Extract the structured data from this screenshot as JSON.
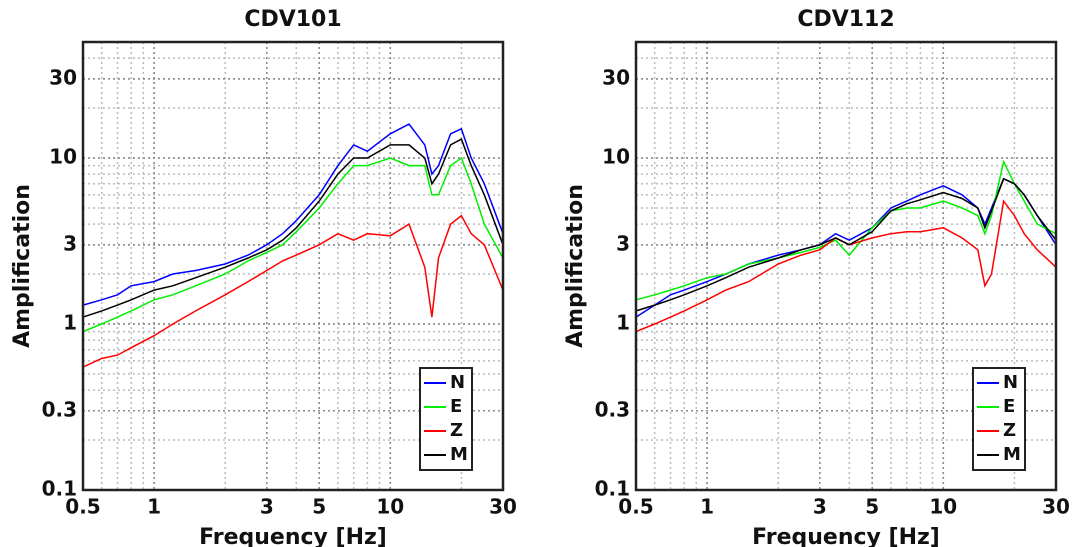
{
  "chart_data": [
    {
      "type": "line",
      "title": "CDV101",
      "x_label": "Frequency [Hz]",
      "y_label": "Amplification",
      "xscale": "log",
      "yscale": "log",
      "grid": true,
      "legend": "lower right",
      "xlim": [
        0.5,
        30
      ],
      "ylim": [
        0.1,
        50
      ],
      "xticks": [
        0.5,
        1,
        3,
        5,
        10,
        30
      ],
      "yticks": [
        0.1,
        0.3,
        1,
        3,
        10,
        30
      ],
      "x": [
        0.5,
        0.6,
        0.7,
        0.8,
        1,
        1.2,
        1.5,
        2,
        2.5,
        3,
        3.5,
        4,
        5,
        6,
        7,
        8,
        10,
        12,
        14,
        15,
        16,
        18,
        20,
        22,
        25,
        30
      ],
      "series": [
        {
          "name": "N",
          "color": "#0000ff",
          "values": [
            1.3,
            1.4,
            1.5,
            1.7,
            1.8,
            2.0,
            2.1,
            2.3,
            2.6,
            3.0,
            3.5,
            4.2,
            6,
            9,
            12,
            11,
            14,
            16,
            12,
            8,
            9,
            14,
            15,
            10,
            7,
            3.5
          ]
        },
        {
          "name": "E",
          "color": "#00ee00",
          "values": [
            0.9,
            1.0,
            1.1,
            1.2,
            1.4,
            1.5,
            1.7,
            2.0,
            2.4,
            2.7,
            3.0,
            3.6,
            5,
            7,
            9,
            9,
            10,
            9,
            9,
            6,
            6,
            9,
            10,
            7,
            4,
            2.5
          ]
        },
        {
          "name": "Z",
          "color": "#ff0000",
          "values": [
            0.55,
            0.62,
            0.65,
            0.72,
            0.85,
            1.0,
            1.2,
            1.5,
            1.8,
            2.1,
            2.4,
            2.6,
            3.0,
            3.5,
            3.2,
            3.5,
            3.4,
            4.0,
            2.2,
            1.1,
            2.5,
            4.0,
            4.5,
            3.5,
            3.0,
            1.6
          ]
        },
        {
          "name": "M",
          "color": "#000000",
          "values": [
            1.1,
            1.2,
            1.3,
            1.4,
            1.6,
            1.7,
            1.9,
            2.2,
            2.5,
            2.8,
            3.2,
            3.8,
            5.5,
            8,
            10,
            10,
            12,
            12,
            10,
            7,
            8,
            12,
            13,
            9,
            6,
            3
          ]
        }
      ]
    },
    {
      "type": "line",
      "title": "CDV112",
      "x_label": "Frequency [Hz]",
      "y_label": "Amplification",
      "xscale": "log",
      "yscale": "log",
      "grid": true,
      "legend": "lower right",
      "xlim": [
        0.5,
        30
      ],
      "ylim": [
        0.1,
        50
      ],
      "xticks": [
        0.5,
        1,
        3,
        5,
        10,
        30
      ],
      "yticks": [
        0.1,
        0.3,
        1,
        3,
        10,
        30
      ],
      "x": [
        0.5,
        0.6,
        0.7,
        0.8,
        1,
        1.2,
        1.5,
        2,
        2.5,
        3,
        3.5,
        4,
        5,
        6,
        7,
        8,
        10,
        12,
        14,
        15,
        16,
        18,
        20,
        22,
        25,
        30
      ],
      "series": [
        {
          "name": "N",
          "color": "#0000ff",
          "values": [
            1.1,
            1.3,
            1.5,
            1.6,
            1.8,
            2.0,
            2.3,
            2.6,
            2.8,
            3.0,
            3.5,
            3.2,
            3.8,
            5,
            5.5,
            6,
            6.8,
            6,
            5,
            4,
            5,
            7.5,
            7,
            6,
            4.5,
            3
          ]
        },
        {
          "name": "E",
          "color": "#00ee00",
          "values": [
            1.4,
            1.5,
            1.6,
            1.7,
            1.9,
            2.0,
            2.3,
            2.5,
            2.7,
            2.9,
            3.2,
            2.6,
            3.8,
            4.8,
            5,
            5,
            5.5,
            5,
            4.5,
            3.5,
            4.5,
            9.5,
            7,
            5.5,
            4,
            3.5
          ]
        },
        {
          "name": "Z",
          "color": "#ff0000",
          "values": [
            0.9,
            1.0,
            1.1,
            1.2,
            1.4,
            1.6,
            1.8,
            2.3,
            2.6,
            2.8,
            3.3,
            3.0,
            3.3,
            3.5,
            3.6,
            3.6,
            3.8,
            3.3,
            2.8,
            1.7,
            2.0,
            5.5,
            4.5,
            3.5,
            2.8,
            2.2
          ]
        },
        {
          "name": "M",
          "color": "#000000",
          "values": [
            1.2,
            1.3,
            1.4,
            1.5,
            1.7,
            1.9,
            2.2,
            2.5,
            2.8,
            3.0,
            3.3,
            3.0,
            3.6,
            4.8,
            5.3,
            5.6,
            6.2,
            5.7,
            5,
            3.8,
            4.8,
            7.5,
            7,
            6,
            4.5,
            3.2
          ]
        }
      ]
    }
  ]
}
